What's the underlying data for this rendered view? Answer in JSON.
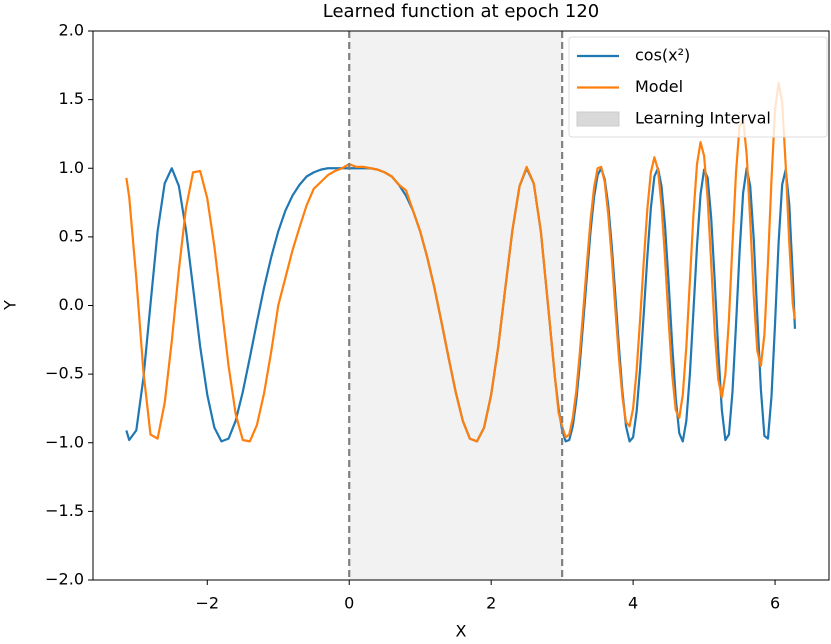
{
  "chart_data": {
    "type": "line",
    "title": "Learned function at epoch 120",
    "xlabel": "X",
    "ylabel": "Y",
    "xlim": [
      -3.61,
      6.76
    ],
    "ylim": [
      -2.0,
      2.0
    ],
    "xticks": [
      {
        "value": -2,
        "label": "−2"
      },
      0,
      2,
      4,
      6
    ],
    "yticks": [
      {
        "value": -2.0,
        "label": "−2.0"
      },
      {
        "value": -1.5,
        "label": "−1.5"
      },
      {
        "value": -1.0,
        "label": "−1.0"
      },
      {
        "value": -0.5,
        "label": "−0.5"
      },
      {
        "value": 0.0,
        "label": "0.0"
      },
      {
        "value": 0.5,
        "label": "0.5"
      },
      {
        "value": 1.0,
        "label": "1.0"
      },
      {
        "value": 1.5,
        "label": "1.5"
      },
      {
        "value": 2.0,
        "label": "2.0"
      }
    ],
    "grid": false,
    "legend": "upper right",
    "interval": [
      0,
      3
    ],
    "interval_name": "Learning Interval",
    "interval_color": "#d9d9d9",
    "interval_line_color": "#808080",
    "x": [
      -3.14,
      -3.1,
      -3.0,
      -2.9,
      -2.8,
      -2.7,
      -2.6,
      -2.5,
      -2.4,
      -2.3,
      -2.2,
      -2.1,
      -2.0,
      -1.9,
      -1.8,
      -1.7,
      -1.6,
      -1.5,
      -1.4,
      -1.3,
      -1.2,
      -1.1,
      -1.0,
      -0.9,
      -0.8,
      -0.7,
      -0.6,
      -0.5,
      -0.4,
      -0.3,
      -0.2,
      -0.1,
      0.0,
      0.1,
      0.2,
      0.3,
      0.4,
      0.5,
      0.6,
      0.7,
      0.8,
      0.9,
      1.0,
      1.1,
      1.2,
      1.3,
      1.4,
      1.5,
      1.6,
      1.7,
      1.8,
      1.9,
      2.0,
      2.1,
      2.2,
      2.3,
      2.4,
      2.5,
      2.6,
      2.7,
      2.8,
      2.9,
      2.95,
      3.0,
      3.05,
      3.1,
      3.15,
      3.2,
      3.25,
      3.3,
      3.35,
      3.4,
      3.45,
      3.5,
      3.55,
      3.6,
      3.65,
      3.7,
      3.75,
      3.8,
      3.85,
      3.9,
      3.95,
      4.0,
      4.05,
      4.1,
      4.15,
      4.2,
      4.25,
      4.3,
      4.35,
      4.4,
      4.45,
      4.5,
      4.55,
      4.6,
      4.65,
      4.7,
      4.75,
      4.8,
      4.85,
      4.9,
      4.95,
      5.0,
      5.05,
      5.1,
      5.15,
      5.2,
      5.25,
      5.3,
      5.35,
      5.4,
      5.45,
      5.5,
      5.55,
      5.6,
      5.65,
      5.7,
      5.75,
      5.8,
      5.85,
      5.9,
      5.95,
      6.0,
      6.05,
      6.1,
      6.15,
      6.2,
      6.25,
      6.28
    ],
    "series": [
      {
        "name": "cos(x²)",
        "color": "#1f77b4",
        "values": [
          -0.91,
          -0.98,
          -0.91,
          -0.53,
          0.01,
          0.54,
          0.89,
          1.0,
          0.87,
          0.55,
          0.13,
          -0.3,
          -0.65,
          -0.89,
          -0.99,
          -0.97,
          -0.84,
          -0.63,
          -0.38,
          -0.12,
          0.13,
          0.35,
          0.54,
          0.69,
          0.8,
          0.88,
          0.94,
          0.97,
          0.99,
          1.0,
          1.0,
          1.0,
          1.0,
          1.0,
          1.0,
          1.0,
          0.99,
          0.97,
          0.94,
          0.88,
          0.8,
          0.69,
          0.54,
          0.35,
          0.13,
          -0.12,
          -0.38,
          -0.63,
          -0.84,
          -0.97,
          -0.99,
          -0.89,
          -0.65,
          -0.3,
          0.13,
          0.55,
          0.87,
          1.0,
          0.89,
          0.54,
          0.01,
          -0.53,
          -0.75,
          -0.91,
          -0.99,
          -0.98,
          -0.88,
          -0.69,
          -0.42,
          -0.1,
          0.22,
          0.54,
          0.79,
          0.95,
          1.0,
          0.92,
          0.73,
          0.43,
          0.07,
          -0.3,
          -0.63,
          -0.88,
          -0.99,
          -0.96,
          -0.77,
          -0.45,
          -0.06,
          0.35,
          0.71,
          0.94,
          1.0,
          0.87,
          0.58,
          0.17,
          -0.28,
          -0.67,
          -0.93,
          -0.99,
          -0.84,
          -0.5,
          -0.04,
          0.43,
          0.81,
          0.99,
          0.93,
          0.64,
          0.18,
          -0.33,
          -0.76,
          -0.98,
          -0.94,
          -0.63,
          -0.14,
          0.39,
          0.82,
          1.0,
          0.87,
          0.48,
          -0.08,
          -0.61,
          -0.95,
          -0.97,
          -0.66,
          -0.13,
          0.46,
          0.88,
          0.99,
          0.74,
          0.21,
          -0.17
        ]
      },
      {
        "name": "Model",
        "color": "#ff7f0e",
        "values": [
          0.93,
          0.79,
          0.2,
          -0.48,
          -0.94,
          -0.97,
          -0.71,
          -0.26,
          0.26,
          0.71,
          0.97,
          0.98,
          0.78,
          0.43,
          0.0,
          -0.44,
          -0.79,
          -0.98,
          -0.99,
          -0.87,
          -0.64,
          -0.34,
          0.0,
          0.2,
          0.4,
          0.57,
          0.73,
          0.85,
          0.9,
          0.95,
          0.98,
          1.0,
          1.03,
          1.01,
          1.01,
          1.0,
          0.99,
          0.97,
          0.94,
          0.88,
          0.84,
          0.69,
          0.54,
          0.35,
          0.13,
          -0.12,
          -0.38,
          -0.63,
          -0.84,
          -0.97,
          -0.99,
          -0.89,
          -0.65,
          -0.3,
          0.13,
          0.55,
          0.87,
          1.01,
          0.89,
          0.54,
          0.01,
          -0.53,
          -0.78,
          -0.88,
          -0.96,
          -0.94,
          -0.82,
          -0.62,
          -0.34,
          -0.02,
          0.31,
          0.62,
          0.86,
          1.0,
          1.01,
          0.9,
          0.66,
          0.34,
          -0.03,
          -0.38,
          -0.67,
          -0.85,
          -0.88,
          -0.75,
          -0.47,
          -0.09,
          0.32,
          0.7,
          0.97,
          1.08,
          0.99,
          0.73,
          0.34,
          -0.11,
          -0.5,
          -0.76,
          -0.82,
          -0.65,
          -0.3,
          0.18,
          0.66,
          1.03,
          1.19,
          1.09,
          0.78,
          0.31,
          -0.19,
          -0.54,
          -0.67,
          -0.5,
          -0.1,
          0.45,
          0.97,
          1.31,
          1.36,
          1.1,
          0.62,
          0.07,
          -0.33,
          -0.44,
          -0.21,
          0.31,
          0.92,
          1.43,
          1.62,
          1.48,
          1.02,
          0.46,
          0.01,
          -0.1
        ]
      }
    ]
  }
}
